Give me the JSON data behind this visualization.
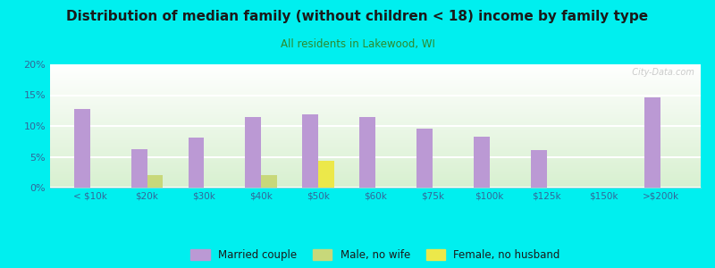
{
  "title": "Distribution of median family (without children < 18) income by family type",
  "subtitle": "All residents in Lakewood, WI",
  "title_color": "#1a1a1a",
  "subtitle_color": "#2d8a2d",
  "background_color": "#00EFEF",
  "categories": [
    "< $10k",
    "$20k",
    "$30k",
    "$40k",
    "$50k",
    "$60k",
    "$75k",
    "$100k",
    "$125k",
    "$150k",
    ">$200k"
  ],
  "married_couple": [
    12.8,
    6.2,
    8.1,
    11.5,
    11.9,
    11.4,
    9.5,
    8.3,
    6.1,
    0.0,
    14.7
  ],
  "male_no_wife": [
    0.0,
    2.0,
    0.0,
    2.0,
    0.0,
    0.0,
    0.0,
    0.0,
    0.0,
    0.0,
    0.0
  ],
  "female_no_husb": [
    0.0,
    0.0,
    0.0,
    0.0,
    4.3,
    0.0,
    0.0,
    0.0,
    0.0,
    0.0,
    0.0
  ],
  "married_color": "#bb99d4",
  "male_color": "#c8d87a",
  "female_color": "#ece84a",
  "ylim": [
    0,
    20
  ],
  "yticks": [
    0,
    5,
    10,
    15,
    20
  ],
  "bar_width": 0.28,
  "watermark": "  City-Data.com",
  "legend_entries": [
    "Married couple",
    "Male, no wife",
    "Female, no husband"
  ]
}
